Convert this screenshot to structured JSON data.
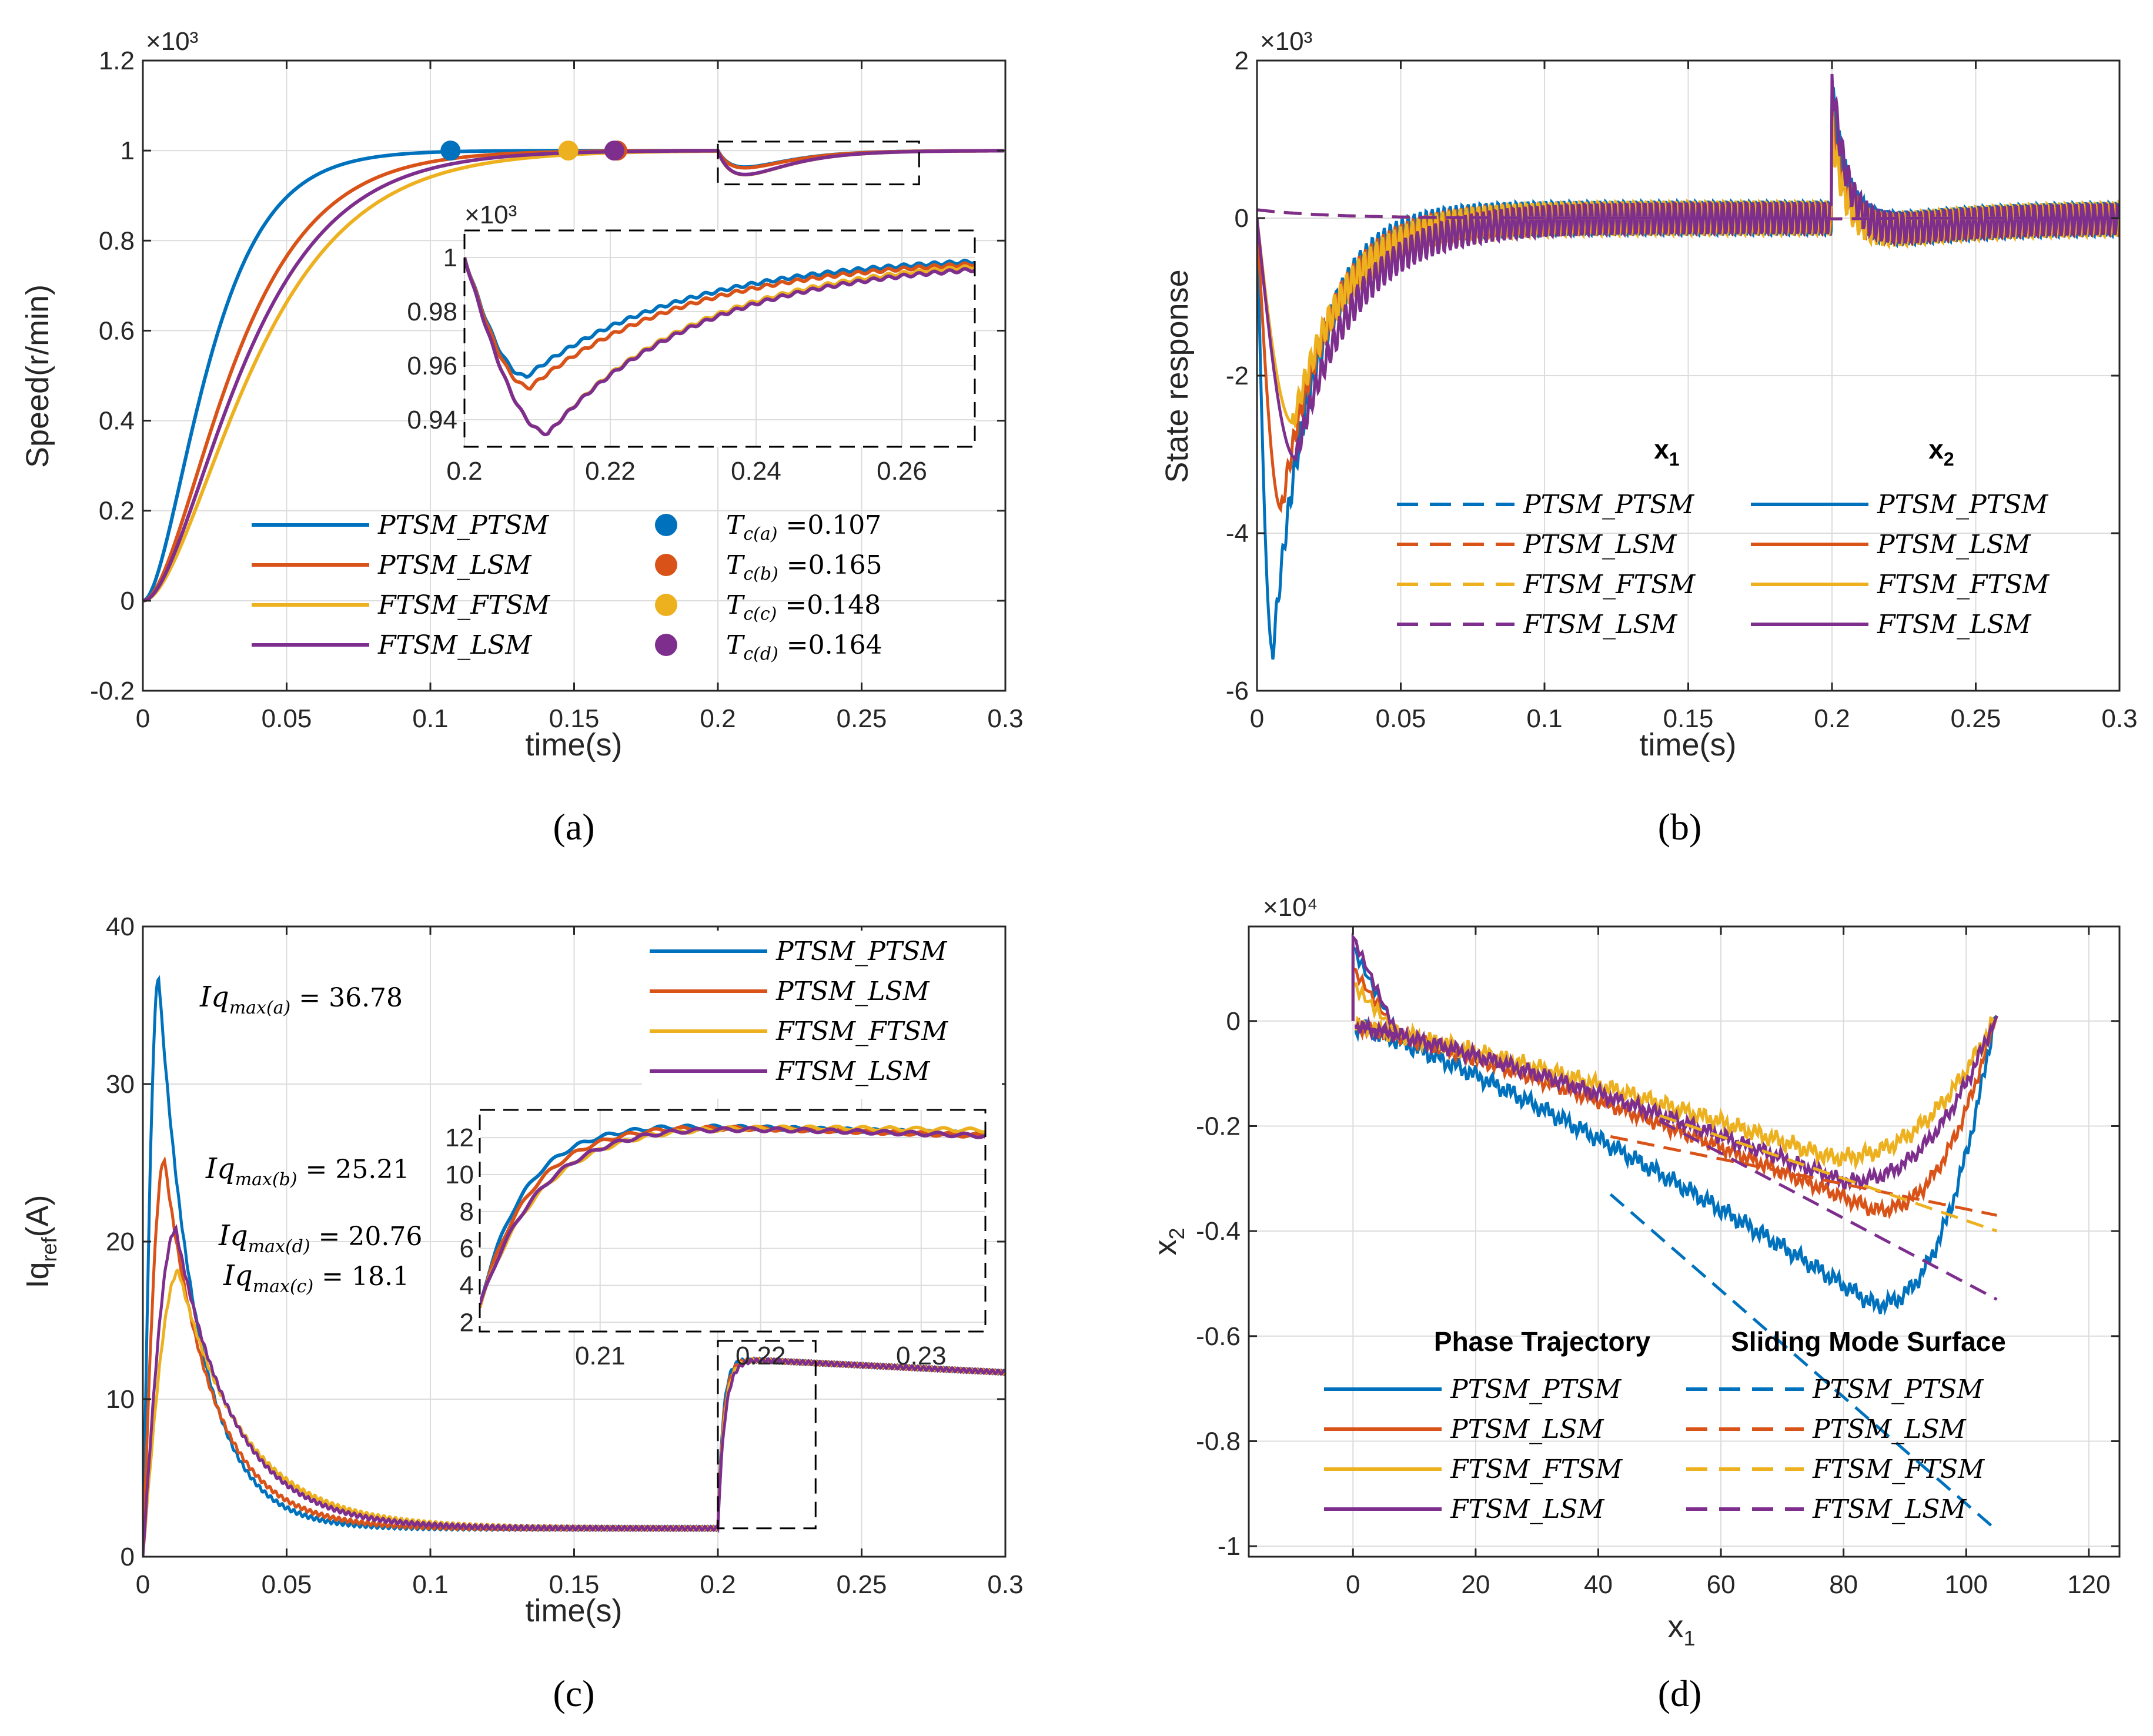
{
  "colors": {
    "blue": "#0072BD",
    "orange": "#D95319",
    "yellow": "#EDB120",
    "purple": "#7E2F8E",
    "grid": "#dcdcdc",
    "axis": "#262626"
  },
  "panels": {
    "a": {
      "caption": "(a)",
      "xlabel": "time(s)",
      "ylabel": "Speed(r/min)",
      "exponent": "×10³",
      "xticks": [
        "0",
        "0.05",
        "0.1",
        "0.15",
        "0.2",
        "0.25",
        "0.3"
      ],
      "yticks": [
        "-0.2",
        "0",
        "0.2",
        "0.4",
        "0.6",
        "0.8",
        "1",
        "1.2"
      ],
      "legend": [
        "PTSM_PTSM",
        "PTSM_LSM",
        "FTSM_FTSM",
        "FTSM_LSM"
      ],
      "markers": [
        {
          "label": "T",
          "sub": "c(a)",
          "value": "=0.107"
        },
        {
          "label": "T",
          "sub": "c(b)",
          "value": "=0.165"
        },
        {
          "label": "T",
          "sub": "c(c)",
          "value": "=0.148"
        },
        {
          "label": "T",
          "sub": "c(d)",
          "value": "=0.164"
        }
      ],
      "inset": {
        "exponent": "×10³",
        "xticks": [
          "0.2",
          "0.22",
          "0.24",
          "0.26"
        ],
        "yticks": [
          "0.94",
          "0.96",
          "0.98",
          "1"
        ]
      }
    },
    "b": {
      "caption": "(b)",
      "xlabel": "time(s)",
      "ylabel": "State response",
      "exponent": "×10³",
      "xticks": [
        "0",
        "0.05",
        "0.1",
        "0.15",
        "0.2",
        "0.25",
        "0.3"
      ],
      "yticks": [
        "-6",
        "-4",
        "-2",
        "0",
        "2"
      ],
      "group1": "x",
      "group1_sub": "1",
      "group2": "x",
      "group2_sub": "2",
      "legend": [
        "PTSM_PTSM",
        "PTSM_LSM",
        "FTSM_FTSM",
        "FTSM_LSM"
      ]
    },
    "c": {
      "caption": "(c)",
      "xlabel": "time(s)",
      "ylabel": "Iq",
      "ylabel_sub": "ref",
      "ylabel_unit": "(A)",
      "xticks": [
        "0",
        "0.05",
        "0.1",
        "0.15",
        "0.2",
        "0.25",
        "0.3"
      ],
      "yticks": [
        "0",
        "10",
        "20",
        "30",
        "40"
      ],
      "legend": [
        "PTSM_PTSM",
        "PTSM_LSM",
        "FTSM_FTSM",
        "FTSM_LSM"
      ],
      "annotations": [
        {
          "label": "Iq",
          "sub": "max(a)",
          "value": "= 36.78"
        },
        {
          "label": "Iq",
          "sub": "max(b)",
          "value": "= 25.21"
        },
        {
          "label": "Iq",
          "sub": "max(d)",
          "value": "= 20.76"
        },
        {
          "label": "Iq",
          "sub": "max(c)",
          "value": "= 18.1"
        }
      ],
      "inset": {
        "xticks": [
          "0.21",
          "0.22",
          "0.23"
        ],
        "yticks": [
          "2",
          "4",
          "6",
          "8",
          "10",
          "12"
        ]
      }
    },
    "d": {
      "caption": "(d)",
      "xlabel": "x",
      "xlabel_sub": "1",
      "ylabel": "x",
      "ylabel_sub": "2",
      "exponent": "×10⁴",
      "xticks": [
        "0",
        "20",
        "40",
        "60",
        "80",
        "100",
        "120"
      ],
      "yticks": [
        "-1",
        "-0.8",
        "-0.6",
        "-0.4",
        "-0.2",
        "0"
      ],
      "group1": "Phase Trajectory",
      "group2": "Sliding Mode Surface",
      "legend": [
        "PTSM_PTSM",
        "PTSM_LSM",
        "FTSM_FTSM",
        "FTSM_LSM"
      ]
    }
  },
  "chart_data": [
    {
      "type": "line",
      "title": "(a)",
      "xlabel": "time(s)",
      "ylabel": "Speed(r/min)",
      "y_scale": "x10^3",
      "xlim": [
        0,
        0.3
      ],
      "ylim": [
        -0.2,
        1.2
      ],
      "series": [
        {
          "name": "PTSM_PTSM",
          "tau": 0.013,
          "dip": 0.045,
          "settle": 0.107
        },
        {
          "name": "PTSM_LSM",
          "tau": 0.018,
          "dip": 0.047,
          "settle": 0.165
        },
        {
          "name": "FTSM_FTSM",
          "tau": 0.022,
          "dip": 0.065,
          "settle": 0.148
        },
        {
          "name": "FTSM_LSM",
          "tau": 0.02,
          "dip": 0.065,
          "settle": 0.164
        }
      ],
      "markers": [
        {
          "x": 0.107,
          "y": 1
        },
        {
          "x": 0.165,
          "y": 1
        },
        {
          "x": 0.148,
          "y": 1
        },
        {
          "x": 0.164,
          "y": 1
        }
      ],
      "inset": {
        "xlim": [
          0.2,
          0.27
        ],
        "ylim": [
          0.93,
          1.01
        ]
      }
    },
    {
      "type": "line",
      "title": "(b)",
      "xlabel": "time(s)",
      "ylabel": "State response",
      "y_scale": "x10^3",
      "xlim": [
        0,
        0.3
      ],
      "ylim": [
        -6,
        2
      ],
      "series_x2_min": [
        {
          "name": "PTSM_PTSM",
          "x": 0.0055,
          "y": -5.5
        },
        {
          "name": "PTSM_LSM",
          "x": 0.0085,
          "y": -3.7
        },
        {
          "name": "FTSM_FTSM",
          "x": 0.0125,
          "y": -2.6
        },
        {
          "name": "FTSM_LSM",
          "x": 0.0135,
          "y": -3.05
        }
      ],
      "disturbance": {
        "x": 0.2,
        "peak": 1.8
      }
    },
    {
      "type": "line",
      "title": "(c)",
      "xlabel": "time(s)",
      "ylabel": "Iq_ref(A)",
      "xlim": [
        0,
        0.3
      ],
      "ylim": [
        0,
        40
      ],
      "series": [
        {
          "name": "PTSM_PTSM",
          "peak": 36.78,
          "peak_t": 0.0055
        },
        {
          "name": "PTSM_LSM",
          "peak": 25.21,
          "peak_t": 0.0075
        },
        {
          "name": "FTSM_FTSM",
          "peak": 18.1,
          "peak_t": 0.0125
        },
        {
          "name": "FTSM_LSM",
          "peak": 20.76,
          "peak_t": 0.0115
        }
      ],
      "steady": 1.8,
      "load_level": 12,
      "final": 11.7,
      "inset": {
        "xlim": [
          0.2025,
          0.234
        ],
        "ylim": [
          1.5,
          13.5
        ]
      }
    },
    {
      "type": "line",
      "title": "(d)",
      "xlabel": "x1",
      "ylabel": "x2",
      "y_scale": "x10^4",
      "xlim": [
        -17,
        125
      ],
      "ylim": [
        -1.02,
        0.18
      ],
      "surfaces": [
        {
          "name": "PTSM_PTSM",
          "x": [
            42,
            105
          ],
          "y": [
            -0.33,
            -0.97
          ]
        },
        {
          "name": "PTSM_LSM",
          "x": [
            42,
            105
          ],
          "y": [
            -0.22,
            -0.37
          ]
        },
        {
          "name": "FTSM_FTSM",
          "x": [
            50,
            105
          ],
          "y": [
            -0.18,
            -0.4
          ]
        },
        {
          "name": "FTSM_LSM",
          "x": [
            50,
            105
          ],
          "y": [
            -0.19,
            -0.53
          ]
        }
      ],
      "trajectory_min": [
        {
          "name": "PTSM_PTSM",
          "x": 85,
          "y": -0.54
        },
        {
          "name": "PTSM_LSM",
          "x": 85,
          "y": -0.36
        },
        {
          "name": "FTSM_FTSM",
          "x": 78,
          "y": -0.26
        },
        {
          "name": "FTSM_LSM",
          "x": 80,
          "y": -0.305
        }
      ]
    }
  ]
}
